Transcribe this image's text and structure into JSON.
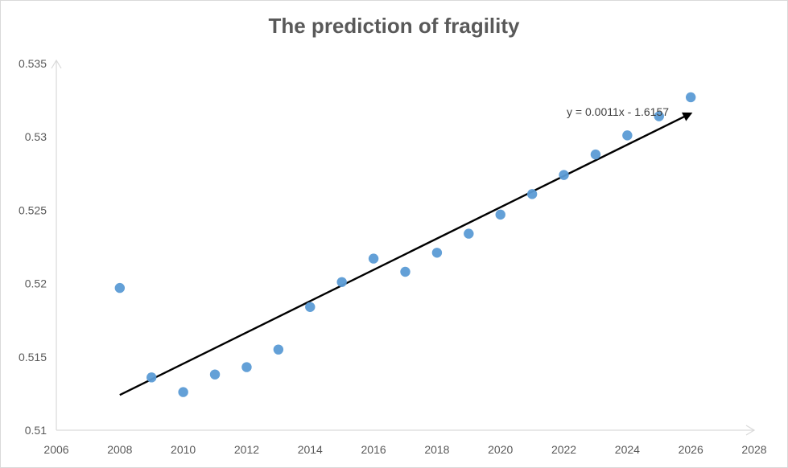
{
  "chart_data": {
    "type": "scatter",
    "title": "The prediction of fragility",
    "xlabel": "",
    "ylabel": "",
    "xlim": [
      2006,
      2028
    ],
    "ylim": [
      0.51,
      0.535
    ],
    "x_ticks": [
      2006,
      2008,
      2010,
      2012,
      2014,
      2016,
      2018,
      2020,
      2022,
      2024,
      2026,
      2028
    ],
    "y_ticks": [
      0.51,
      0.515,
      0.52,
      0.525,
      0.53,
      0.535
    ],
    "x_tick_labels": [
      "2006",
      "2008",
      "2010",
      "2012",
      "2014",
      "2016",
      "2018",
      "2020",
      "2022",
      "2024",
      "2026",
      "2028"
    ],
    "y_tick_labels": [
      "0.51",
      "0.515",
      "0.52",
      "0.525",
      "0.53",
      "0.535"
    ],
    "grid": false,
    "legend": "none",
    "series": [
      {
        "color": "#5b9bd5",
        "points": [
          {
            "x": 2008,
            "y": 0.5197
          },
          {
            "x": 2009,
            "y": 0.5136
          },
          {
            "x": 2010,
            "y": 0.5126
          },
          {
            "x": 2011,
            "y": 0.5138
          },
          {
            "x": 2012,
            "y": 0.5143
          },
          {
            "x": 2013,
            "y": 0.5155
          },
          {
            "x": 2014,
            "y": 0.5184
          },
          {
            "x": 2015,
            "y": 0.5201
          },
          {
            "x": 2016,
            "y": 0.5217
          },
          {
            "x": 2017,
            "y": 0.5208
          },
          {
            "x": 2018,
            "y": 0.5221
          },
          {
            "x": 2019,
            "y": 0.5234
          },
          {
            "x": 2020,
            "y": 0.5247
          },
          {
            "x": 2021,
            "y": 0.5261
          },
          {
            "x": 2022,
            "y": 0.5274
          },
          {
            "x": 2023,
            "y": 0.5288
          },
          {
            "x": 2024,
            "y": 0.5301
          },
          {
            "x": 2025,
            "y": 0.5314
          },
          {
            "x": 2026,
            "y": 0.5327
          }
        ]
      }
    ],
    "trend_arrow": {
      "from": {
        "x": 2008,
        "y": 0.5124
      },
      "to": {
        "x": 2026,
        "y": 0.5316
      },
      "color": "#000000"
    },
    "annotation": {
      "text": "y = 0.0011x - 1.6157",
      "x": 2023.7,
      "y": 0.5317
    }
  }
}
